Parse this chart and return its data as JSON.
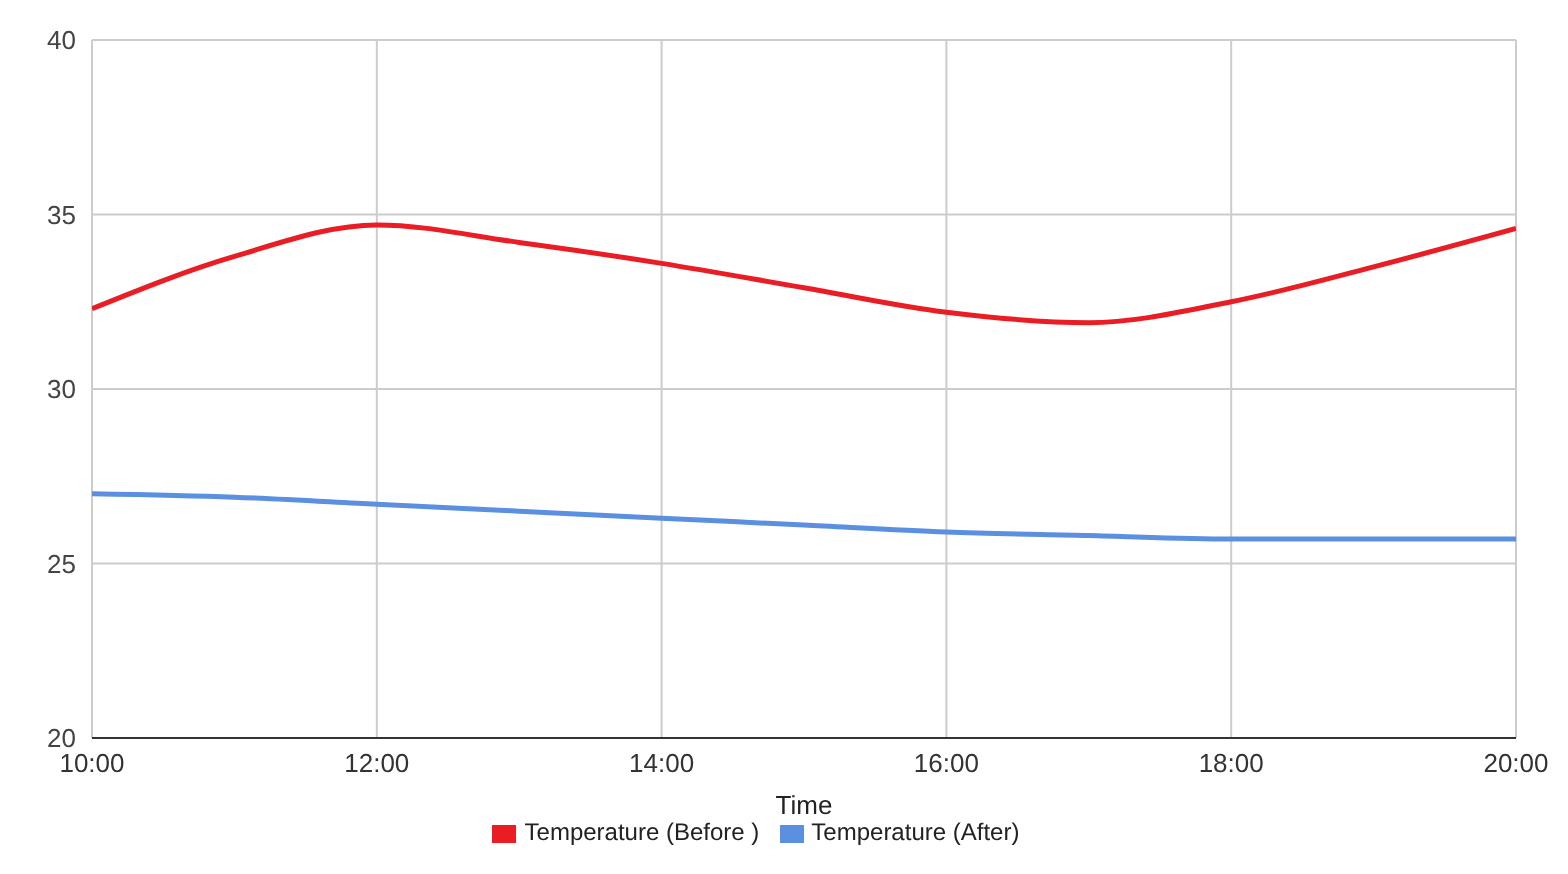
{
  "chart_data": {
    "type": "line",
    "xlabel": "Time",
    "x": [
      10,
      11,
      12,
      13,
      14,
      15,
      16,
      17,
      18,
      19,
      20
    ],
    "series": [
      {
        "name": "Temperature (Before )",
        "color": "#ea1d25",
        "values": [
          32.3,
          33.8,
          34.7,
          34.2,
          33.6,
          32.9,
          32.2,
          31.9,
          32.5,
          33.5,
          34.6
        ]
      },
      {
        "name": "Temperature (After)",
        "color": "#5b8fe0",
        "values": [
          27.0,
          26.9,
          26.7,
          26.5,
          26.3,
          26.1,
          25.9,
          25.8,
          25.7,
          25.7,
          25.7
        ]
      }
    ],
    "xlim": [
      10,
      20
    ],
    "xticks": [
      {
        "value": 10,
        "label": "10:00"
      },
      {
        "value": 12,
        "label": "12:00"
      },
      {
        "value": 14,
        "label": "14:00"
      },
      {
        "value": 16,
        "label": "16:00"
      },
      {
        "value": 18,
        "label": "18:00"
      },
      {
        "value": 20,
        "label": "20:00"
      }
    ],
    "ylim": [
      20,
      40
    ],
    "yticks": [
      20,
      25,
      30,
      35,
      40
    ],
    "grid": true,
    "legend": "bottom",
    "marker": "none",
    "line_style": "solid"
  }
}
